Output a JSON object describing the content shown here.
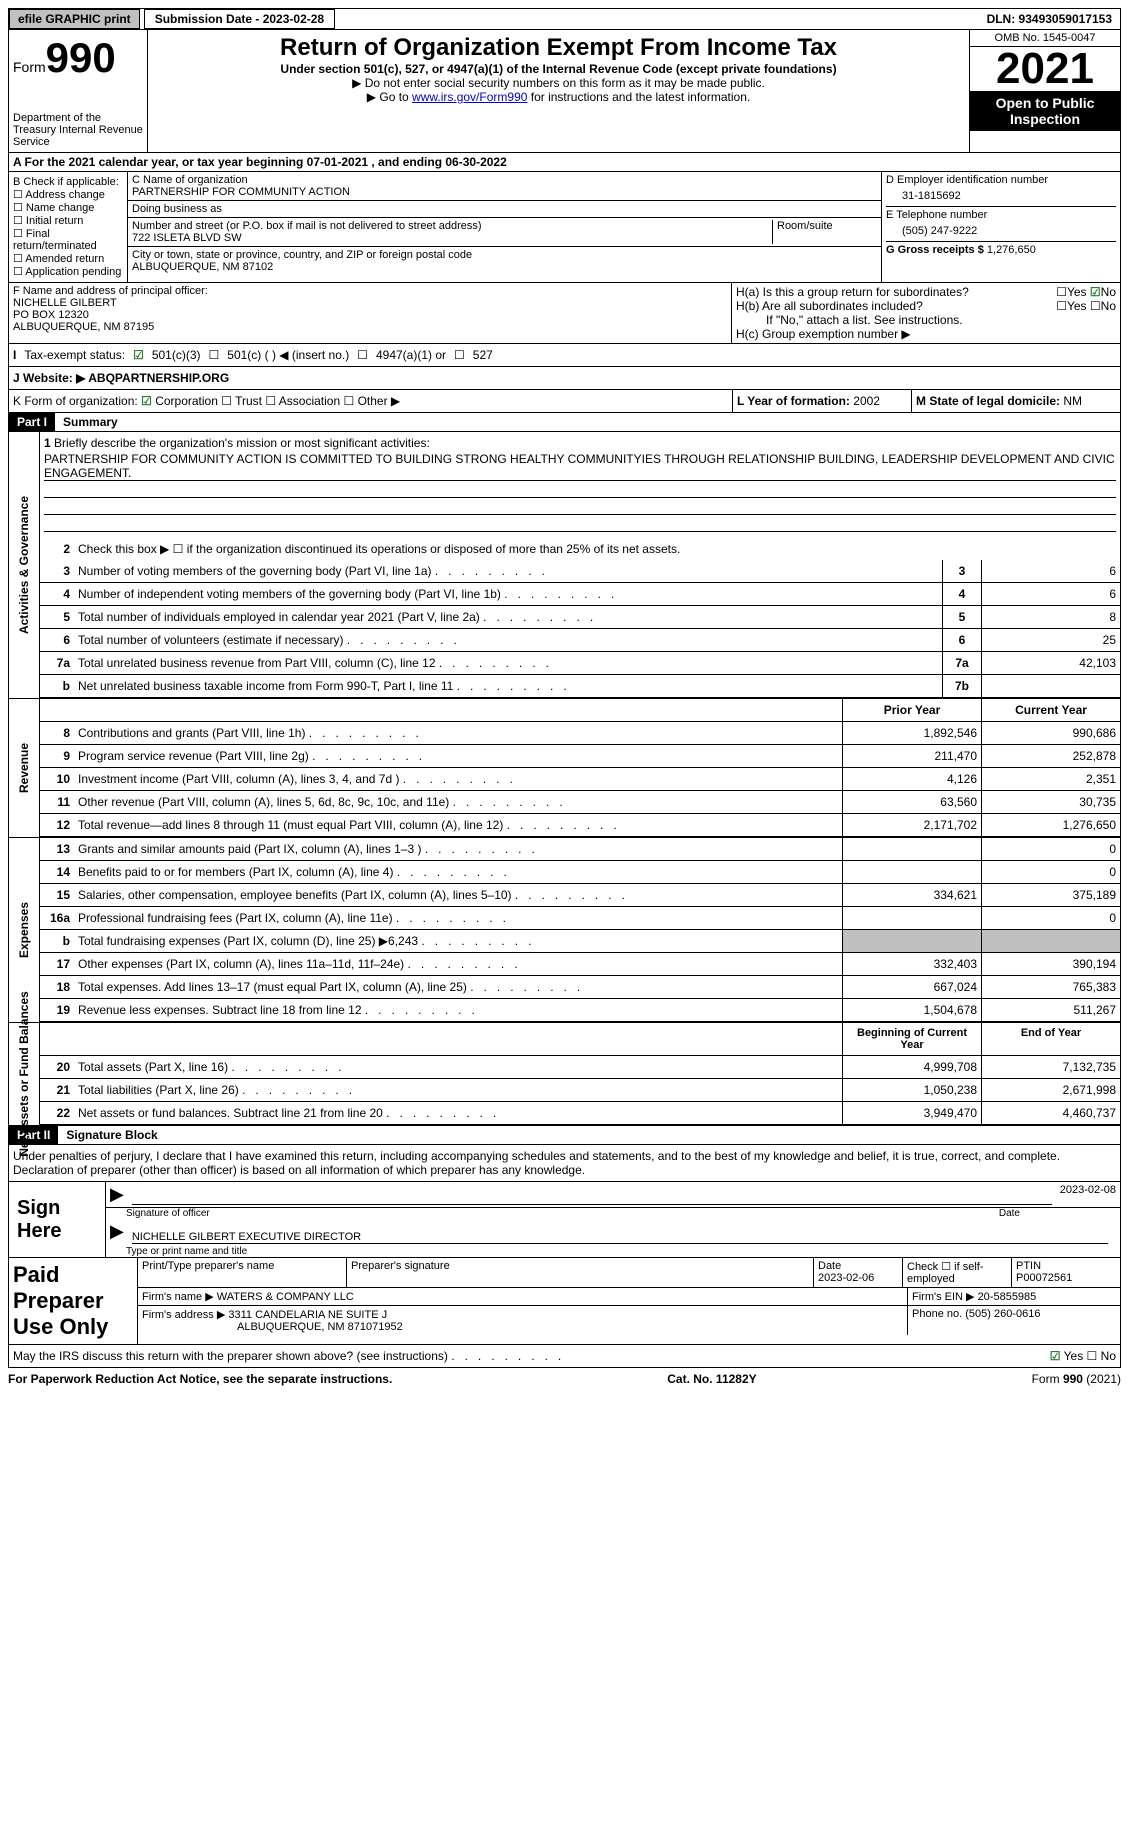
{
  "topbar": {
    "efile": "efile GRAPHIC print",
    "subdate_lbl": "Submission Date - 2023-02-28",
    "dln": "DLN: 93493059017153"
  },
  "header": {
    "form": "Form",
    "num": "990",
    "dept": "Department of the Treasury Internal Revenue Service",
    "title": "Return of Organization Exempt From Income Tax",
    "sub": "Under section 501(c), 527, or 4947(a)(1) of the Internal Revenue Code (except private foundations)",
    "note1": "▶ Do not enter social security numbers on this form as it may be made public.",
    "note2_pre": "▶ Go to ",
    "note2_link": "www.irs.gov/Form990",
    "note2_post": " for instructions and the latest information.",
    "omb": "OMB No. 1545-0047",
    "year": "2021",
    "open": "Open to Public Inspection"
  },
  "A": {
    "text": "A For the 2021 calendar year, or tax year beginning 07-01-2021    , and ending 06-30-2022"
  },
  "B": {
    "label": "B Check if applicable:",
    "items": [
      "Address change",
      "Name change",
      "Initial return",
      "Final return/terminated",
      "Amended return",
      "Application pending"
    ]
  },
  "C": {
    "name_lbl": "C Name of organization",
    "name": "PARTNERSHIP FOR COMMUNITY ACTION",
    "dba_lbl": "Doing business as",
    "dba": "",
    "addr_lbl": "Number and street (or P.O. box if mail is not delivered to street address)",
    "room_lbl": "Room/suite",
    "addr": "722 ISLETA BLVD SW",
    "city_lbl": "City or town, state or province, country, and ZIP or foreign postal code",
    "city": "ALBUQUERQUE, NM  87102"
  },
  "D": {
    "lbl": "D Employer identification number",
    "val": "31-1815692"
  },
  "E": {
    "lbl": "E Telephone number",
    "val": "(505) 247-9222"
  },
  "G": {
    "lbl": "G Gross receipts $",
    "val": "1,276,650"
  },
  "F": {
    "lbl": "F  Name and address of principal officer:",
    "l1": "NICHELLE GILBERT",
    "l2": "PO BOX 12320",
    "l3": "ALBUQUERQUE, NM  87195"
  },
  "H": {
    "a": "H(a)  Is this a group return for subordinates?",
    "b": "H(b)  Are all subordinates included?",
    "bnote": "If \"No,\" attach a list. See instructions.",
    "c": "H(c)  Group exemption number ▶",
    "yes": "Yes",
    "no": "No"
  },
  "I": {
    "lbl": "Tax-exempt status:",
    "o1": "501(c)(3)",
    "o2": "501(c) (  ) ◀ (insert no.)",
    "o3": "4947(a)(1) or",
    "o4": "527"
  },
  "J": {
    "lbl": "Website: ▶",
    "val": "ABQPARTNERSHIP.ORG"
  },
  "K": {
    "lbl": "K Form of organization:",
    "o1": "Corporation",
    "o2": "Trust",
    "o3": "Association",
    "o4": "Other ▶"
  },
  "L": {
    "lbl": "L Year of formation:",
    "val": "2002"
  },
  "M": {
    "lbl": "M State of legal domicile:",
    "val": "NM"
  },
  "part1": {
    "label": "Part I",
    "title": "Summary"
  },
  "side": {
    "ag": "Activities & Governance",
    "rev": "Revenue",
    "exp": "Expenses",
    "net": "Net Assets or Fund Balances"
  },
  "q1": {
    "n": "1",
    "t": "Briefly describe the organization's mission or most significant activities:",
    "m": "PARTNERSHIP FOR COMMUNITY ACTION IS COMMITTED TO BUILDING STRONG HEALTHY COMMUNITYIES THROUGH RELATIONSHIP BUILDING, LEADERSHIP DEVELOPMENT AND CIVIC ENGAGEMENT."
  },
  "q2": {
    "n": "2",
    "t": "Check this box ▶ ☐ if the organization discontinued its operations or disposed of more than 25% of its net assets."
  },
  "rows_single": [
    {
      "n": "3",
      "t": "Number of voting members of the governing body (Part VI, line 1a)",
      "c": "3",
      "v": "6"
    },
    {
      "n": "4",
      "t": "Number of independent voting members of the governing body (Part VI, line 1b)",
      "c": "4",
      "v": "6"
    },
    {
      "n": "5",
      "t": "Total number of individuals employed in calendar year 2021 (Part V, line 2a)",
      "c": "5",
      "v": "8"
    },
    {
      "n": "6",
      "t": "Total number of volunteers (estimate if necessary)",
      "c": "6",
      "v": "25"
    },
    {
      "n": "7a",
      "t": "Total unrelated business revenue from Part VIII, column (C), line 12",
      "c": "7a",
      "v": "42,103"
    },
    {
      "n": "b",
      "t": "Net unrelated business taxable income from Form 990-T, Part I, line 11",
      "c": "7b",
      "v": ""
    }
  ],
  "hdr2": {
    "p": "Prior Year",
    "c": "Current Year"
  },
  "rev": [
    {
      "n": "8",
      "t": "Contributions and grants (Part VIII, line 1h)",
      "p": "1,892,546",
      "c": "990,686"
    },
    {
      "n": "9",
      "t": "Program service revenue (Part VIII, line 2g)",
      "p": "211,470",
      "c": "252,878"
    },
    {
      "n": "10",
      "t": "Investment income (Part VIII, column (A), lines 3, 4, and 7d )",
      "p": "4,126",
      "c": "2,351"
    },
    {
      "n": "11",
      "t": "Other revenue (Part VIII, column (A), lines 5, 6d, 8c, 9c, 10c, and 11e)",
      "p": "63,560",
      "c": "30,735"
    },
    {
      "n": "12",
      "t": "Total revenue—add lines 8 through 11 (must equal Part VIII, column (A), line 12)",
      "p": "2,171,702",
      "c": "1,276,650"
    }
  ],
  "exp": [
    {
      "n": "13",
      "t": "Grants and similar amounts paid (Part IX, column (A), lines 1–3 )",
      "p": "",
      "c": "0"
    },
    {
      "n": "14",
      "t": "Benefits paid to or for members (Part IX, column (A), line 4)",
      "p": "",
      "c": "0"
    },
    {
      "n": "15",
      "t": "Salaries, other compensation, employee benefits (Part IX, column (A), lines 5–10)",
      "p": "334,621",
      "c": "375,189"
    },
    {
      "n": "16a",
      "t": "Professional fundraising fees (Part IX, column (A), line 11e)",
      "p": "",
      "c": "0"
    },
    {
      "n": "b",
      "t": "Total fundraising expenses (Part IX, column (D), line 25) ▶6,243",
      "p": "GRAY",
      "c": "GRAY"
    },
    {
      "n": "17",
      "t": "Other expenses (Part IX, column (A), lines 11a–11d, 11f–24e)",
      "p": "332,403",
      "c": "390,194"
    },
    {
      "n": "18",
      "t": "Total expenses. Add lines 13–17 (must equal Part IX, column (A), line 25)",
      "p": "667,024",
      "c": "765,383"
    },
    {
      "n": "19",
      "t": "Revenue less expenses. Subtract line 18 from line 12",
      "p": "1,504,678",
      "c": "511,267"
    }
  ],
  "hdr3": {
    "p": "Beginning of Current Year",
    "c": "End of Year"
  },
  "net": [
    {
      "n": "20",
      "t": "Total assets (Part X, line 16)",
      "p": "4,999,708",
      "c": "7,132,735"
    },
    {
      "n": "21",
      "t": "Total liabilities (Part X, line 26)",
      "p": "1,050,238",
      "c": "2,671,998"
    },
    {
      "n": "22",
      "t": "Net assets or fund balances. Subtract line 21 from line 20",
      "p": "3,949,470",
      "c": "4,460,737"
    }
  ],
  "part2": {
    "label": "Part II",
    "title": "Signature Block"
  },
  "sigp": "Under penalties of perjury, I declare that I have examined this return, including accompanying schedules and statements, and to the best of my knowledge and belief, it is true, correct, and complete. Declaration of preparer (other than officer) is based on all information of which preparer has any knowledge.",
  "sign": {
    "here": "Sign Here",
    "off_lbl": "Signature of officer",
    "date": "2023-02-08",
    "name": "NICHELLE GILBERT  EXECUTIVE DIRECTOR",
    "name_lbl": "Type or print name and title",
    "date_lbl": "Date"
  },
  "prep": {
    "here": "Paid Preparer Use Only",
    "h1": "Print/Type preparer's name",
    "h2": "Preparer's signature",
    "h3": "Date",
    "h3v": "2023-02-06",
    "h4": "Check ☐ if self-employed",
    "h5": "PTIN",
    "h5v": "P00072561",
    "firm_lbl": "Firm's name    ▶",
    "firm": "WATERS & COMPANY LLC",
    "ein_lbl": "Firm's EIN ▶",
    "ein": "20-5855985",
    "addr_lbl": "Firm's address ▶",
    "addr1": "3311 CANDELARIA NE SUITE J",
    "addr2": "ALBUQUERQUE, NM  871071952",
    "ph_lbl": "Phone no.",
    "ph": "(505) 260-0616"
  },
  "last": {
    "t": "May the IRS discuss this return with the preparer shown above? (see instructions)",
    "yes": "Yes",
    "no": "No"
  },
  "foot": {
    "l": "For Paperwork Reduction Act Notice, see the separate instructions.",
    "m": "Cat. No. 11282Y",
    "r": "Form 990 (2021)"
  }
}
